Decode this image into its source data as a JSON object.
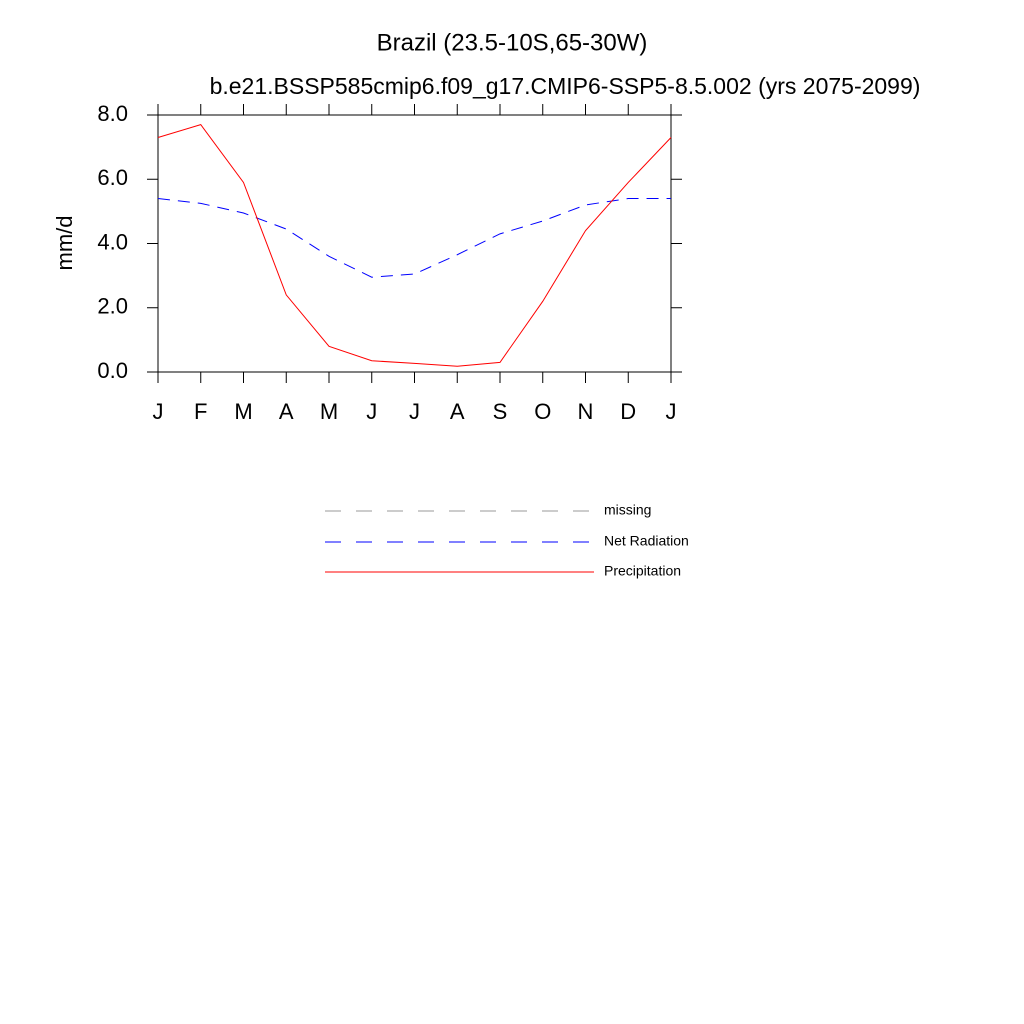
{
  "chart_data": {
    "type": "line",
    "title": "Brazil (23.5-10S,65-30W)",
    "subtitle": "b.e21.BSSP585cmip6.f09_g17.CMIP6-SSP5-8.5.002 (yrs 2075-2099)",
    "y_label": "mm/d",
    "categories": [
      "J",
      "F",
      "M",
      "A",
      "M",
      "J",
      "J",
      "A",
      "S",
      "O",
      "N",
      "D",
      "J"
    ],
    "series": [
      {
        "name": "missing",
        "color": "#999999",
        "dash": true,
        "values": [
          null,
          null,
          null,
          null,
          null,
          null,
          null,
          null,
          null,
          null,
          null,
          null,
          null
        ]
      },
      {
        "name": "Net Radiation",
        "color": "#0000ff",
        "dash": true,
        "values": [
          5.4,
          5.25,
          4.95,
          4.45,
          3.6,
          2.95,
          3.05,
          3.65,
          4.3,
          4.7,
          5.2,
          5.4,
          5.4
        ]
      },
      {
        "name": "Precipitation",
        "color": "#ff0000",
        "dash": false,
        "values": [
          7.3,
          7.7,
          5.9,
          2.4,
          0.8,
          0.35,
          0.27,
          0.18,
          0.3,
          2.2,
          4.4,
          5.9,
          7.3
        ]
      }
    ],
    "ylim": [
      0,
      8
    ],
    "yticks": [
      {
        "value": 0,
        "label": "0.0"
      },
      {
        "value": 2,
        "label": "2.0"
      },
      {
        "value": 4,
        "label": "4.0"
      },
      {
        "value": 6,
        "label": "6.0"
      },
      {
        "value": 8,
        "label": "8.0"
      }
    ],
    "grid": false
  }
}
